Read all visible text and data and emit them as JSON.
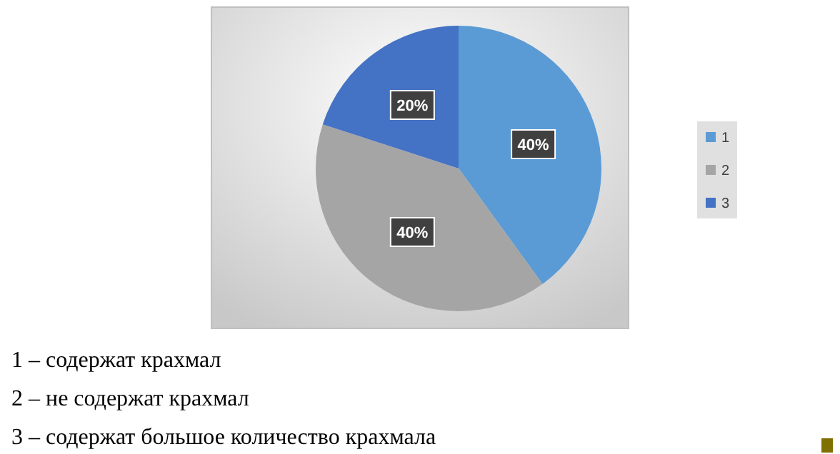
{
  "chart_data": {
    "type": "pie",
    "categories": [
      "1",
      "2",
      "3"
    ],
    "values": [
      40,
      40,
      20
    ],
    "colors": [
      "#5b9bd5",
      "#a5a5a5",
      "#4472c4"
    ],
    "value_labels": [
      "40%",
      "40%",
      "20%"
    ],
    "legend": "right",
    "annotations": [
      "1 – содержат крахмал",
      "2 – не содержат крахмал",
      "3 – содержат большое количество крахмала"
    ]
  }
}
